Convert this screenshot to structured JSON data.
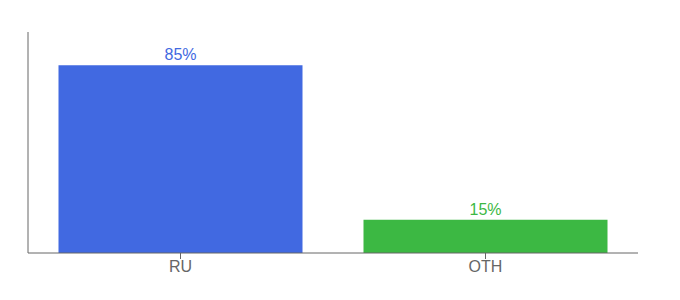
{
  "chart_data": {
    "type": "bar",
    "categories": [
      "RU",
      "OTH"
    ],
    "values": [
      85,
      15
    ],
    "value_labels": [
      "85%",
      "15%"
    ],
    "colors": [
      "#4169e1",
      "#3cb843"
    ],
    "ylim": [
      0,
      100
    ],
    "data_labels": true,
    "tick_labels": "x",
    "grid": false
  }
}
